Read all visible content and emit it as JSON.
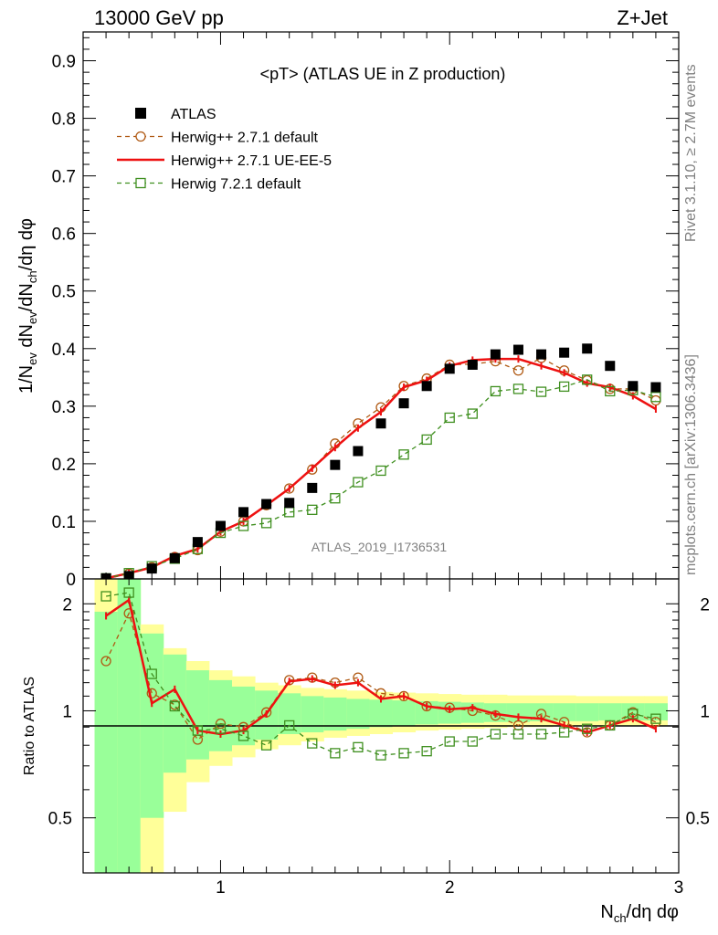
{
  "header": {
    "left": "13000 GeV pp",
    "right": "Z+Jet"
  },
  "side_labels": {
    "top": "Rivet 3.1.10, ≥ 2.7M events",
    "bottom": "mcplots.cern.ch [arXiv:1306.3436]"
  },
  "watermark": "ATLAS_2019_I1736531",
  "colors": {
    "atlas": "#000000",
    "herwigpp_default": "#b05a14",
    "herwigpp_ueee5": "#ee1111",
    "herwig72": "#3f8f1f",
    "band_inner": "#99ff99",
    "band_outer": "#ffff99"
  },
  "chart_data": [
    {
      "type": "scatter",
      "title": "<pT> (ATLAS UE in Z production)",
      "xlabel": "N_ch/dη dφ",
      "ylabel": "1/N_ev dN_ev/dN_ch/dη dφ",
      "xlim": [
        0.4,
        3.0
      ],
      "ylim": [
        0,
        0.95
      ],
      "yticks": [
        0,
        0.1,
        0.2,
        0.3,
        0.4,
        0.5,
        0.6,
        0.7,
        0.8,
        0.9
      ],
      "ytick_labels": [
        "0",
        "0.1",
        "0.2",
        "0.3",
        "0.4",
        "0.5",
        "0.6",
        "0.7",
        "0.8",
        "0.9"
      ],
      "legend_position": "top-left",
      "x": [
        0.5,
        0.6,
        0.7,
        0.8,
        0.9,
        1.0,
        1.1,
        1.2,
        1.3,
        1.4,
        1.5,
        1.6,
        1.7,
        1.8,
        1.9,
        2.0,
        2.1,
        2.2,
        2.3,
        2.4,
        2.5,
        2.6,
        2.7,
        2.8,
        2.9
      ],
      "series": [
        {
          "name": "ATLAS",
          "style": "square-marker",
          "values": [
            0.001,
            0.005,
            0.018,
            0.036,
            0.064,
            0.092,
            0.116,
            0.13,
            0.132,
            0.158,
            0.198,
            0.222,
            0.27,
            0.305,
            0.335,
            0.365,
            0.372,
            0.39,
            0.398,
            0.39,
            0.393,
            0.4,
            0.37,
            0.335,
            0.333
          ]
        },
        {
          "name": "Herwig++ 2.7.1 default",
          "style": "dashed-circle",
          "values": [
            0.0,
            0.009,
            0.02,
            0.038,
            0.05,
            0.082,
            0.1,
            0.128,
            0.157,
            0.19,
            0.235,
            0.27,
            0.298,
            0.335,
            0.348,
            0.372,
            0.373,
            0.378,
            0.362,
            0.384,
            0.362,
            0.345,
            0.33,
            0.33,
            0.31
          ]
        },
        {
          "name": "Herwig++ 2.7.1 UE-EE-5",
          "style": "solid-line",
          "values": [
            0.001,
            0.01,
            0.02,
            0.04,
            0.052,
            0.082,
            0.1,
            0.128,
            0.157,
            0.192,
            0.228,
            0.262,
            0.29,
            0.333,
            0.345,
            0.37,
            0.38,
            0.382,
            0.382,
            0.37,
            0.358,
            0.34,
            0.333,
            0.318,
            0.295
          ]
        },
        {
          "name": "Herwig 7.2.1 default",
          "style": "dashed-square",
          "values": [
            0.001,
            0.01,
            0.022,
            0.035,
            0.052,
            0.08,
            0.092,
            0.097,
            0.116,
            0.12,
            0.14,
            0.168,
            0.188,
            0.216,
            0.242,
            0.28,
            0.287,
            0.326,
            0.33,
            0.325,
            0.334,
            0.346,
            0.326,
            0.328,
            0.316
          ]
        }
      ]
    },
    {
      "type": "scatter",
      "ylabel": "Ratio to ATLAS",
      "xlabel": "N_ch/dη dφ",
      "xlim": [
        0.4,
        3.0
      ],
      "ylim": [
        0.35,
        2.35
      ],
      "log_scale_y": true,
      "xticks": [
        1,
        2,
        3
      ],
      "xtick_labels": [
        "1",
        "2",
        "3"
      ],
      "yticks": [
        0.5,
        1,
        2
      ],
      "ytick_labels": [
        "0.5",
        "1",
        "2"
      ],
      "x": [
        0.5,
        0.6,
        0.7,
        0.8,
        0.9,
        1.0,
        1.1,
        1.2,
        1.3,
        1.4,
        1.5,
        1.6,
        1.7,
        1.8,
        1.9,
        2.0,
        2.1,
        2.2,
        2.3,
        2.4,
        2.5,
        2.6,
        2.7,
        2.8,
        2.9
      ],
      "band_inner": [
        [
          0.35,
          1.9
        ],
        [
          0.35,
          3.0
        ],
        [
          0.5,
          1.65
        ],
        [
          0.67,
          1.44
        ],
        [
          0.73,
          1.3
        ],
        [
          0.77,
          1.22
        ],
        [
          0.8,
          1.17
        ],
        [
          0.83,
          1.14
        ],
        [
          0.86,
          1.12
        ],
        [
          0.87,
          1.1
        ],
        [
          0.88,
          1.09
        ],
        [
          0.89,
          1.08
        ],
        [
          0.9,
          1.075
        ],
        [
          0.91,
          1.07
        ],
        [
          0.915,
          1.065
        ],
        [
          0.92,
          1.06
        ],
        [
          0.925,
          1.055
        ],
        [
          0.93,
          1.05
        ],
        [
          0.93,
          1.05
        ],
        [
          0.935,
          1.05
        ],
        [
          0.935,
          1.05
        ],
        [
          0.935,
          1.05
        ],
        [
          0.94,
          1.05
        ],
        [
          0.94,
          1.05
        ],
        [
          0.94,
          1.05
        ]
      ],
      "band_outer": [
        [
          0.35,
          2.35
        ],
        [
          0.35,
          3.0
        ],
        [
          0.35,
          1.75
        ],
        [
          0.52,
          1.5
        ],
        [
          0.63,
          1.38
        ],
        [
          0.7,
          1.3
        ],
        [
          0.74,
          1.25
        ],
        [
          0.78,
          1.2
        ],
        [
          0.8,
          1.18
        ],
        [
          0.82,
          1.16
        ],
        [
          0.84,
          1.15
        ],
        [
          0.85,
          1.14
        ],
        [
          0.86,
          1.13
        ],
        [
          0.87,
          1.125
        ],
        [
          0.88,
          1.12
        ],
        [
          0.885,
          1.115
        ],
        [
          0.89,
          1.11
        ],
        [
          0.895,
          1.11
        ],
        [
          0.9,
          1.105
        ],
        [
          0.9,
          1.105
        ],
        [
          0.905,
          1.105
        ],
        [
          0.905,
          1.1
        ],
        [
          0.91,
          1.1
        ],
        [
          0.91,
          1.1
        ],
        [
          0.91,
          1.1
        ]
      ],
      "series": [
        {
          "name": "Herwig++ 2.7.1 default",
          "style": "dashed-circle",
          "values": [
            1.38,
            1.88,
            1.12,
            1.04,
            0.83,
            0.92,
            0.9,
            0.99,
            1.22,
            1.24,
            1.2,
            1.24,
            1.12,
            1.1,
            1.03,
            1.02,
            1.0,
            0.97,
            0.91,
            0.98,
            0.93,
            0.87,
            0.91,
            0.99,
            0.93
          ]
        },
        {
          "name": "Herwig++ 2.7.1 UE-EE-5",
          "style": "solid-line",
          "values": [
            1.85,
            2.05,
            1.05,
            1.15,
            0.88,
            0.86,
            0.88,
            0.98,
            1.21,
            1.23,
            1.18,
            1.2,
            1.08,
            1.1,
            1.03,
            1.01,
            1.02,
            0.98,
            0.96,
            0.95,
            0.91,
            0.87,
            0.91,
            0.95,
            0.89
          ]
        },
        {
          "name": "Herwig 7.2.1 default",
          "style": "dashed-square",
          "values": [
            2.1,
            2.15,
            1.27,
            1.03,
            0.88,
            0.89,
            0.85,
            0.8,
            0.91,
            0.81,
            0.76,
            0.79,
            0.75,
            0.76,
            0.77,
            0.82,
            0.82,
            0.86,
            0.86,
            0.86,
            0.87,
            0.89,
            0.91,
            0.98,
            0.95
          ]
        }
      ]
    }
  ]
}
